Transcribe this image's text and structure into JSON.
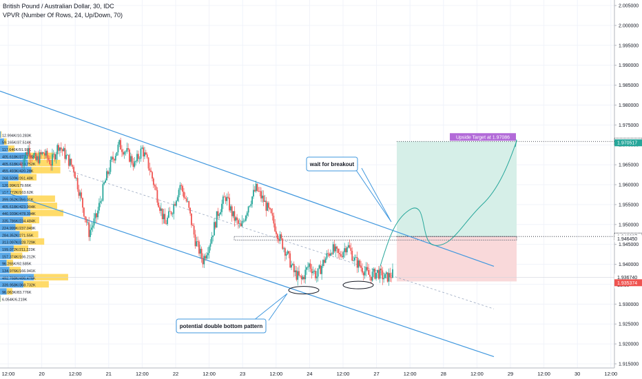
{
  "header": {
    "title": "British Pound / Australian Dollar, 30, IDC",
    "indicator": "VPVR (Number Of Rows, 24, Up/Down, 70)"
  },
  "colors": {
    "up": "#26a69a",
    "down": "#ef5350",
    "channel": "#3f97de",
    "vp_up": "#4aa2e8",
    "vp_down": "#ffd54f",
    "target_zone": "#d6efe8",
    "stop_zone": "#f9d9da",
    "target_label": "#b26ad8",
    "price_label_green": "#26a69a",
    "price_label_red": "#ef5350"
  },
  "chart_data": {
    "type": "candlestick",
    "symbol": "British Pound / Australian Dollar",
    "interval": "30",
    "source": "IDC",
    "y_axis": {
      "range": [
        1.9135,
        2.0115
      ],
      "ticks": [
        "2.005000",
        "2.000000",
        "1.995000",
        "1.990000",
        "1.985000",
        "1.980000",
        "1.975000",
        "1.970000",
        "1.965000",
        "1.960000",
        "1.955000",
        "1.950000",
        "1.945000",
        "1.940000",
        "1.935000",
        "1.930000",
        "1.925000",
        "1.920000",
        "1.915000"
      ]
    },
    "x_axis": {
      "ticks": [
        "12:00",
        "20",
        "12:00",
        "21",
        "12:00",
        "22",
        "12:00",
        "23",
        "12:00",
        "24",
        "12:00",
        "27",
        "12:00",
        "28",
        "12:00",
        "29",
        "12:00",
        "30",
        "12:00"
      ]
    },
    "price_path": [
      [
        0,
        1.965
      ],
      [
        6,
        1.969
      ],
      [
        12,
        1.966
      ],
      [
        18,
        1.968
      ],
      [
        24,
        1.9655
      ],
      [
        30,
        1.97
      ],
      [
        36,
        1.967
      ],
      [
        42,
        1.964
      ],
      [
        48,
        1.956
      ],
      [
        54,
        1.948
      ],
      [
        60,
        1.952
      ],
      [
        66,
        1.96
      ],
      [
        72,
        1.966
      ],
      [
        78,
        1.97
      ],
      [
        84,
        1.968
      ],
      [
        90,
        1.965
      ],
      [
        96,
        1.969
      ],
      [
        102,
        1.964
      ],
      [
        108,
        1.957
      ],
      [
        114,
        1.95
      ],
      [
        120,
        1.954
      ],
      [
        126,
        1.96
      ],
      [
        132,
        1.955
      ],
      [
        138,
        1.946
      ],
      [
        144,
        1.941
      ],
      [
        150,
        1.946
      ],
      [
        156,
        1.953
      ],
      [
        162,
        1.957
      ],
      [
        168,
        1.952
      ],
      [
        174,
        1.949
      ],
      [
        180,
        1.955
      ],
      [
        186,
        1.959
      ],
      [
        192,
        1.956
      ],
      [
        198,
        1.952
      ],
      [
        204,
        1.947
      ],
      [
        210,
        1.943
      ],
      [
        216,
        1.938
      ],
      [
        222,
        1.936
      ],
      [
        228,
        1.94
      ],
      [
        234,
        1.937
      ],
      [
        240,
        1.941
      ],
      [
        246,
        1.944
      ],
      [
        252,
        1.942
      ],
      [
        258,
        1.945
      ],
      [
        264,
        1.941
      ],
      [
        270,
        1.939
      ],
      [
        276,
        1.937
      ],
      [
        282,
        1.938
      ],
      [
        288,
        1.9365
      ],
      [
        294,
        1.9375
      ]
    ],
    "volume_profile": [
      {
        "label": "12.994K/10.283K",
        "up": 13.0,
        "down": 10.3
      },
      {
        "label": "59.165K/37.514K",
        "up": 59.2,
        "down": 37.5
      },
      {
        "label": "117.646K/91.92K",
        "up": 117.6,
        "down": 91.9
      },
      {
        "label": "405.618K/373.795K",
        "up": 405.6,
        "down": 373.8
      },
      {
        "label": "405.618K/469.752K",
        "up": 405.6,
        "down": 469.8
      },
      {
        "label": "455.493K/420.28K",
        "up": 455.5,
        "down": 420.3
      },
      {
        "label": "268.509K/261.48K",
        "up": 268.5,
        "down": 261.5
      },
      {
        "label": "120.99K/179.66K",
        "up": 121.0,
        "down": 179.7
      },
      {
        "label": "157.772K/163.62K",
        "up": 157.8,
        "down": 163.6
      },
      {
        "label": "399.052K/399.91K",
        "up": 399.1,
        "down": 399.9
      },
      {
        "label": "405.618K/423.904K",
        "up": 405.6,
        "down": 423.9
      },
      {
        "label": "440.939K/478.394K",
        "up": 440.9,
        "down": 478.4
      },
      {
        "label": "335.786K/234.484K",
        "up": 335.8,
        "down": 234.5
      },
      {
        "label": "224.999K/237.049K",
        "up": 225.0,
        "down": 237.0
      },
      {
        "label": "284.352K/271.55K",
        "up": 284.4,
        "down": 271.6
      },
      {
        "label": "313.097K/328.729K",
        "up": 313.1,
        "down": 328.7
      },
      {
        "label": "199.072K/211.223K",
        "up": 199.1,
        "down": 211.2
      },
      {
        "label": "157.374K/166.212K",
        "up": 157.4,
        "down": 166.2
      },
      {
        "label": "96.265K/92.585K",
        "up": 96.3,
        "down": 92.6
      },
      {
        "label": "134.976K/166.941K",
        "up": 135.0,
        "down": 166.9
      },
      {
        "label": "492.768K/496.476K",
        "up": 492.8,
        "down": 496.5
      },
      {
        "label": "339.958K/368.732K",
        "up": 340.0,
        "down": 368.7
      },
      {
        "label": "96.063K/83.776K",
        "up": 96.1,
        "down": 83.8
      },
      {
        "label": "6.054K/6.219K",
        "up": 6.1,
        "down": 6.2
      }
    ],
    "annotations": {
      "breakout_callout": "wait for breakout",
      "pattern_callout": "potential double bottom pattern",
      "target_label": "Upside Target at 1.97086",
      "target_price": 1.97086,
      "level_1": 1.946987,
      "level_2": 1.94645,
      "zone_bottom": 1.9357
    },
    "price_scale_labels": [
      {
        "text": "1.970860",
        "value": 1.97086,
        "style": "dotted"
      },
      {
        "text": "1.970517",
        "value": 1.970517,
        "style": "green"
      },
      {
        "text": "1.946987",
        "value": 1.946987,
        "style": "dotted"
      },
      {
        "text": "1.946450",
        "value": 1.94645,
        "style": "plain"
      },
      {
        "text": "1.936740",
        "value": 1.93674,
        "style": "plain"
      },
      {
        "text": "13:50",
        "value": 1.93465,
        "style": "plain"
      },
      {
        "text": "1.935374",
        "value": 1.935374,
        "style": "red"
      }
    ]
  }
}
